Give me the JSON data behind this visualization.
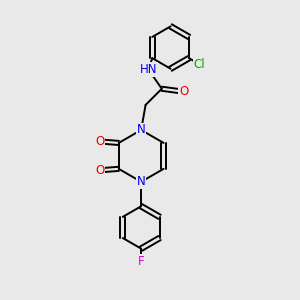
{
  "background_color": "#e9e9e9",
  "atom_colors": {
    "C": "#000000",
    "N": "#0000ee",
    "O": "#ee0000",
    "H": "#008888",
    "Cl": "#00aa00",
    "F": "#dd00dd"
  },
  "bond_color": "#000000",
  "bond_width": 1.4,
  "font_size_atom": 8.5,
  "fig_size": [
    3.0,
    3.0
  ],
  "dpi": 100
}
